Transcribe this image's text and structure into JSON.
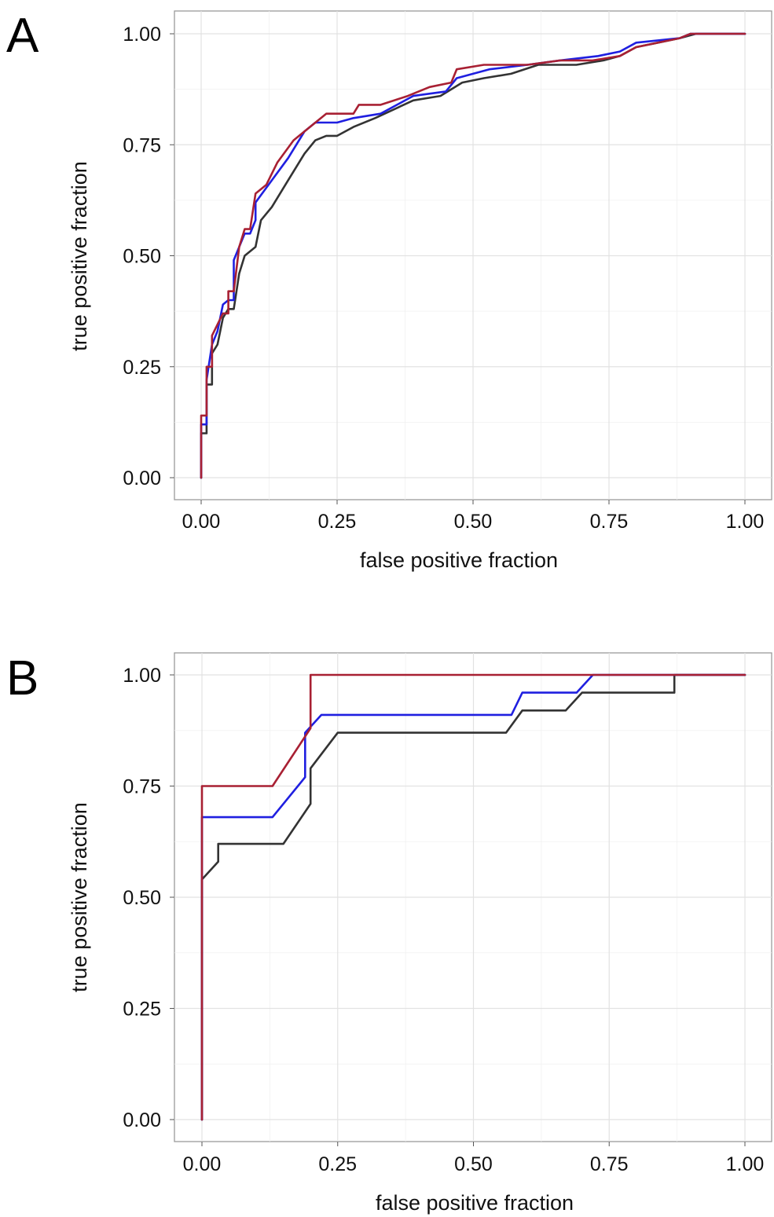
{
  "panels": [
    {
      "letter": "A",
      "xlabel": "false positive fraction",
      "ylabel": "true positive fraction"
    },
    {
      "letter": "B",
      "xlabel": "false positive fraction",
      "ylabel": "true positive fraction"
    }
  ],
  "colors": {
    "black": "#333333",
    "blue": "#1f1fe0",
    "red": "#a82033"
  },
  "chart_data": [
    {
      "type": "line",
      "title": "",
      "xlabel": "false positive fraction",
      "ylabel": "true positive fraction",
      "xlim": [
        0,
        1
      ],
      "ylim": [
        0,
        1
      ],
      "xticks": [
        "0.00",
        "0.25",
        "0.50",
        "0.75",
        "1.00"
      ],
      "yticks": [
        "0.00",
        "0.25",
        "0.50",
        "0.75",
        "1.00"
      ],
      "grid": true,
      "series": [
        {
          "color": "#333333",
          "points": [
            [
              0,
              0
            ],
            [
              0,
              0.1
            ],
            [
              0.01,
              0.1
            ],
            [
              0.01,
              0.21
            ],
            [
              0.02,
              0.21
            ],
            [
              0.02,
              0.28
            ],
            [
              0.03,
              0.3
            ],
            [
              0.04,
              0.36
            ],
            [
              0.05,
              0.38
            ],
            [
              0.06,
              0.38
            ],
            [
              0.07,
              0.46
            ],
            [
              0.08,
              0.5
            ],
            [
              0.09,
              0.51
            ],
            [
              0.1,
              0.52
            ],
            [
              0.11,
              0.58
            ],
            [
              0.13,
              0.61
            ],
            [
              0.16,
              0.67
            ],
            [
              0.19,
              0.73
            ],
            [
              0.21,
              0.76
            ],
            [
              0.23,
              0.77
            ],
            [
              0.25,
              0.77
            ],
            [
              0.28,
              0.79
            ],
            [
              0.32,
              0.81
            ],
            [
              0.39,
              0.85
            ],
            [
              0.44,
              0.86
            ],
            [
              0.48,
              0.89
            ],
            [
              0.52,
              0.9
            ],
            [
              0.57,
              0.91
            ],
            [
              0.62,
              0.93
            ],
            [
              0.69,
              0.93
            ],
            [
              0.74,
              0.94
            ],
            [
              0.77,
              0.95
            ],
            [
              0.8,
              0.97
            ],
            [
              0.84,
              0.98
            ],
            [
              0.88,
              0.99
            ],
            [
              0.91,
              1.0
            ],
            [
              1.0,
              1.0
            ]
          ]
        },
        {
          "color": "#1f1fe0",
          "points": [
            [
              0,
              0
            ],
            [
              0,
              0.12
            ],
            [
              0.01,
              0.12
            ],
            [
              0.01,
              0.22
            ],
            [
              0.02,
              0.3
            ],
            [
              0.03,
              0.33
            ],
            [
              0.04,
              0.39
            ],
            [
              0.05,
              0.4
            ],
            [
              0.06,
              0.4
            ],
            [
              0.06,
              0.49
            ],
            [
              0.08,
              0.55
            ],
            [
              0.09,
              0.55
            ],
            [
              0.1,
              0.58
            ],
            [
              0.1,
              0.62
            ],
            [
              0.13,
              0.67
            ],
            [
              0.16,
              0.72
            ],
            [
              0.19,
              0.78
            ],
            [
              0.21,
              0.8
            ],
            [
              0.25,
              0.8
            ],
            [
              0.28,
              0.81
            ],
            [
              0.33,
              0.82
            ],
            [
              0.39,
              0.86
            ],
            [
              0.45,
              0.87
            ],
            [
              0.47,
              0.9
            ],
            [
              0.53,
              0.92
            ],
            [
              0.6,
              0.93
            ],
            [
              0.66,
              0.94
            ],
            [
              0.73,
              0.95
            ],
            [
              0.77,
              0.96
            ],
            [
              0.8,
              0.98
            ],
            [
              0.88,
              0.99
            ],
            [
              0.9,
              1.0
            ],
            [
              1.0,
              1.0
            ]
          ]
        },
        {
          "color": "#a82033",
          "points": [
            [
              0,
              0
            ],
            [
              0,
              0.14
            ],
            [
              0.01,
              0.14
            ],
            [
              0.01,
              0.25
            ],
            [
              0.02,
              0.25
            ],
            [
              0.02,
              0.32
            ],
            [
              0.04,
              0.37
            ],
            [
              0.05,
              0.37
            ],
            [
              0.05,
              0.42
            ],
            [
              0.06,
              0.42
            ],
            [
              0.07,
              0.52
            ],
            [
              0.08,
              0.56
            ],
            [
              0.09,
              0.56
            ],
            [
              0.1,
              0.64
            ],
            [
              0.12,
              0.66
            ],
            [
              0.14,
              0.71
            ],
            [
              0.17,
              0.76
            ],
            [
              0.2,
              0.79
            ],
            [
              0.23,
              0.82
            ],
            [
              0.28,
              0.82
            ],
            [
              0.29,
              0.84
            ],
            [
              0.33,
              0.84
            ],
            [
              0.38,
              0.86
            ],
            [
              0.42,
              0.88
            ],
            [
              0.46,
              0.89
            ],
            [
              0.47,
              0.92
            ],
            [
              0.52,
              0.93
            ],
            [
              0.6,
              0.93
            ],
            [
              0.66,
              0.94
            ],
            [
              0.72,
              0.94
            ],
            [
              0.77,
              0.95
            ],
            [
              0.8,
              0.97
            ],
            [
              0.88,
              0.99
            ],
            [
              0.9,
              1.0
            ],
            [
              1.0,
              1.0
            ]
          ]
        }
      ]
    },
    {
      "type": "line",
      "title": "",
      "xlabel": "false positive fraction",
      "ylabel": "true positive fraction",
      "xlim": [
        0,
        1
      ],
      "ylim": [
        0,
        1
      ],
      "xticks": [
        "0.00",
        "0.25",
        "0.50",
        "0.75",
        "1.00"
      ],
      "yticks": [
        "0.00",
        "0.25",
        "0.50",
        "0.75",
        "1.00"
      ],
      "grid": true,
      "series": [
        {
          "color": "#333333",
          "points": [
            [
              0,
              0
            ],
            [
              0,
              0.54
            ],
            [
              0.03,
              0.58
            ],
            [
              0.03,
              0.62
            ],
            [
              0.15,
              0.62
            ],
            [
              0.2,
              0.71
            ],
            [
              0.2,
              0.79
            ],
            [
              0.25,
              0.87
            ],
            [
              0.56,
              0.87
            ],
            [
              0.59,
              0.92
            ],
            [
              0.67,
              0.92
            ],
            [
              0.7,
              0.96
            ],
            [
              0.87,
              0.96
            ],
            [
              0.87,
              1.0
            ],
            [
              1.0,
              1.0
            ]
          ]
        },
        {
          "color": "#1f1fe0",
          "points": [
            [
              0,
              0
            ],
            [
              0,
              0.68
            ],
            [
              0.13,
              0.68
            ],
            [
              0.19,
              0.77
            ],
            [
              0.19,
              0.87
            ],
            [
              0.22,
              0.91
            ],
            [
              0.57,
              0.91
            ],
            [
              0.59,
              0.96
            ],
            [
              0.69,
              0.96
            ],
            [
              0.72,
              1.0
            ],
            [
              1.0,
              1.0
            ]
          ]
        },
        {
          "color": "#a82033",
          "points": [
            [
              0,
              0
            ],
            [
              0,
              0.75
            ],
            [
              0.13,
              0.75
            ],
            [
              0.2,
              0.88
            ],
            [
              0.2,
              1.0
            ],
            [
              1.0,
              1.0
            ]
          ]
        }
      ]
    }
  ]
}
